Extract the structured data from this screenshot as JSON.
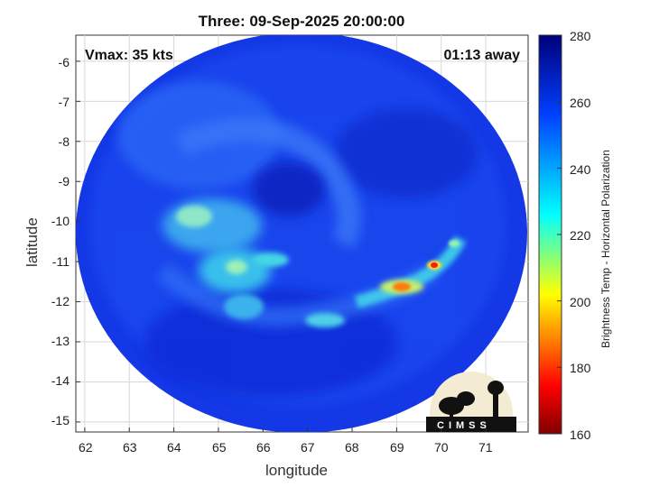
{
  "title": "Three: 09-Sep-2025 20:00:00",
  "vmax_label": "Vmax: 35 kts",
  "time_away_label": "01:13 away",
  "x_axis": {
    "label": "longitude",
    "ticks": [
      "62",
      "63",
      "64",
      "65",
      "66",
      "67",
      "68",
      "69",
      "70",
      "71"
    ],
    "range": [
      61.8,
      71.95
    ]
  },
  "y_axis": {
    "label": "latitude",
    "ticks": [
      "-6",
      "-7",
      "-8",
      "-9",
      "-10",
      "-11",
      "-12",
      "-13",
      "-14",
      "-15"
    ],
    "range": [
      -15.25,
      -5.35
    ]
  },
  "colorbar": {
    "label": "Brightness Temp - Horizontal Polarization",
    "ticks": [
      "280",
      "260",
      "240",
      "220",
      "200",
      "180",
      "160"
    ],
    "range": [
      160,
      280
    ]
  },
  "logo_text": "CIMSS",
  "colors": {
    "background_blue": "#1236e8",
    "cold_core": "#ff2a00",
    "cyan_band": "#39d6e6"
  }
}
